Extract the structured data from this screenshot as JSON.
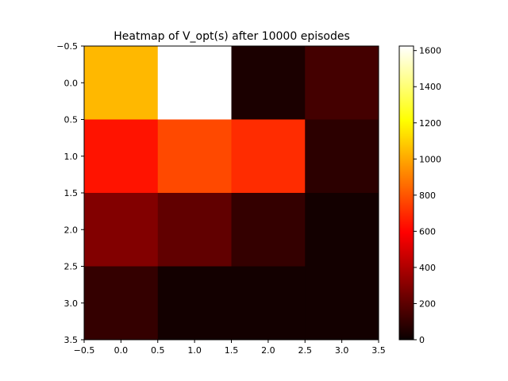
{
  "chart_data": {
    "type": "heatmap",
    "title": "Heatmap of V_opt(s) after 10000 episodes",
    "xlabel": "",
    "ylabel": "",
    "x_range": [
      -0.5,
      3.5
    ],
    "y_range": [
      -0.5,
      3.5
    ],
    "y_inverted": true,
    "x_ticks": [
      "−0.5",
      "0.0",
      "0.5",
      "1.0",
      "1.5",
      "2.0",
      "2.5",
      "3.0",
      "3.5"
    ],
    "y_ticks": [
      "−0.5",
      "0.0",
      "0.5",
      "1.0",
      "1.5",
      "2.0",
      "2.5",
      "3.0",
      "3.5"
    ],
    "colormap": "hot",
    "value_range": [
      0,
      1625
    ],
    "colorbar_ticks": [
      "0",
      "200",
      "400",
      "600",
      "800",
      "1000",
      "1200",
      "1400",
      "1600"
    ],
    "grid": false,
    "values": [
      [
        1040,
        1625,
        40,
        140
      ],
      [
        640,
        770,
        700,
        80
      ],
      [
        290,
        210,
        100,
        20
      ],
      [
        100,
        20,
        20,
        20
      ]
    ]
  }
}
